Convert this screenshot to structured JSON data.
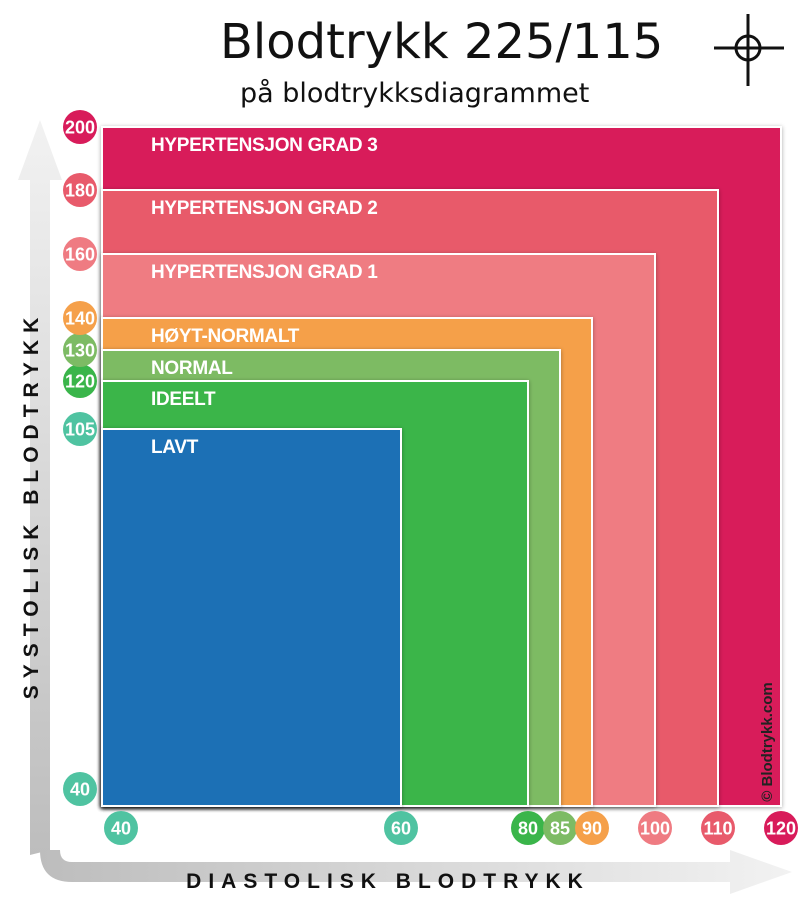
{
  "title": "Blodtrykk 225/115",
  "subtitle": "på blodtrykksdiagrammet",
  "crosshair_icon": "crosshair-icon",
  "watermark": "© Blodtrykk.com",
  "chart_data": {
    "type": "area",
    "title": "Blodtrykk 225/115",
    "subtitle": "på blodtrykksdiagrammet",
    "xlabel": "DIASTOLISK BLODTRYKK",
    "ylabel": "SYSTOLISK BLODTRYKK",
    "x_ticks": [
      {
        "label": "40",
        "color": "#4fc3a1"
      },
      {
        "label": "60",
        "color": "#4fc3a1"
      },
      {
        "label": "80",
        "color": "#3ab54a"
      },
      {
        "label": "85",
        "color": "#7dbb64"
      },
      {
        "label": "90",
        "color": "#f5a04a"
      },
      {
        "label": "100",
        "color": "#ef7b82"
      },
      {
        "label": "110",
        "color": "#e85a6b"
      },
      {
        "label": "120",
        "color": "#d81b5a"
      }
    ],
    "y_ticks": [
      {
        "label": "40",
        "color": "#4fc3a1"
      },
      {
        "label": "105",
        "color": "#4fc3a1"
      },
      {
        "label": "120",
        "color": "#3ab54a"
      },
      {
        "label": "130",
        "color": "#7dbb64"
      },
      {
        "label": "140",
        "color": "#f5a04a"
      },
      {
        "label": "160",
        "color": "#ef7b82"
      },
      {
        "label": "180",
        "color": "#e85a6b"
      },
      {
        "label": "200",
        "color": "#d81b5a"
      }
    ],
    "zones": [
      {
        "name": "HYPERTENSJON GRAD 3",
        "max_diastolic": 120,
        "max_systolic": 200,
        "color": "#d81b5a"
      },
      {
        "name": "HYPERTENSJON GRAD 2",
        "max_diastolic": 110,
        "max_systolic": 180,
        "color": "#e85a6b"
      },
      {
        "name": "HYPERTENSJON GRAD 1",
        "max_diastolic": 100,
        "max_systolic": 160,
        "color": "#ef7b82"
      },
      {
        "name": "HØYT-NORMALT",
        "max_diastolic": 90,
        "max_systolic": 140,
        "color": "#f5a04a"
      },
      {
        "name": "NORMAL",
        "max_diastolic": 85,
        "max_systolic": 130,
        "color": "#7dbb64"
      },
      {
        "name": "IDEELT",
        "max_diastolic": 80,
        "max_systolic": 120,
        "color": "#3ab54a"
      },
      {
        "name": "LAVT",
        "max_diastolic": 60,
        "max_systolic": 105,
        "color": "#1f6fb5"
      }
    ],
    "axis_min": {
      "diastolic": 40,
      "systolic": 40
    },
    "grid": false,
    "legend": "none"
  }
}
